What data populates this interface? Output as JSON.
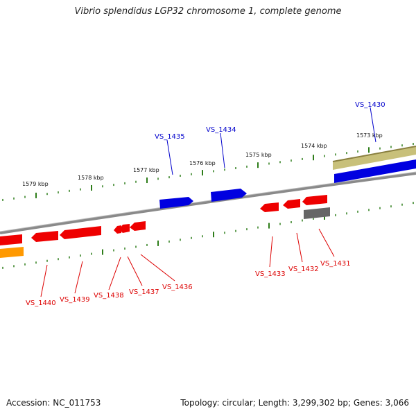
{
  "title": "Vibrio splendidus LGP32 chromosome 1, complete genome",
  "footer": {
    "accession": "Accession: NC_011753",
    "topology": "Topology: circular; Length: 3,299,302 bp; Genes: 3,066"
  },
  "colors": {
    "backbone": "#8a8a8a",
    "forward_gene": "#0000e0",
    "reverse_gene": "#ee0000",
    "grey_gene": "#666666",
    "olive_feature": "#c8c07a",
    "orange_feature": "#ff9900",
    "tick": "#2e7d1a",
    "forward_label": "#0000cc",
    "reverse_label": "#dd0000"
  },
  "scale_labels": [
    "1579 kbp",
    "1578 kbp",
    "1577 kbp",
    "1576 kbp",
    "1575 kbp",
    "1574 kbp",
    "1573 kbp"
  ],
  "forward_genes": [
    "VS_1435",
    "VS_1434",
    "VS_1430"
  ],
  "reverse_genes": [
    "VS_1440",
    "VS_1439",
    "VS_1438",
    "VS_1437",
    "VS_1436",
    "VS_1433",
    "VS_1432",
    "VS_1431"
  ]
}
